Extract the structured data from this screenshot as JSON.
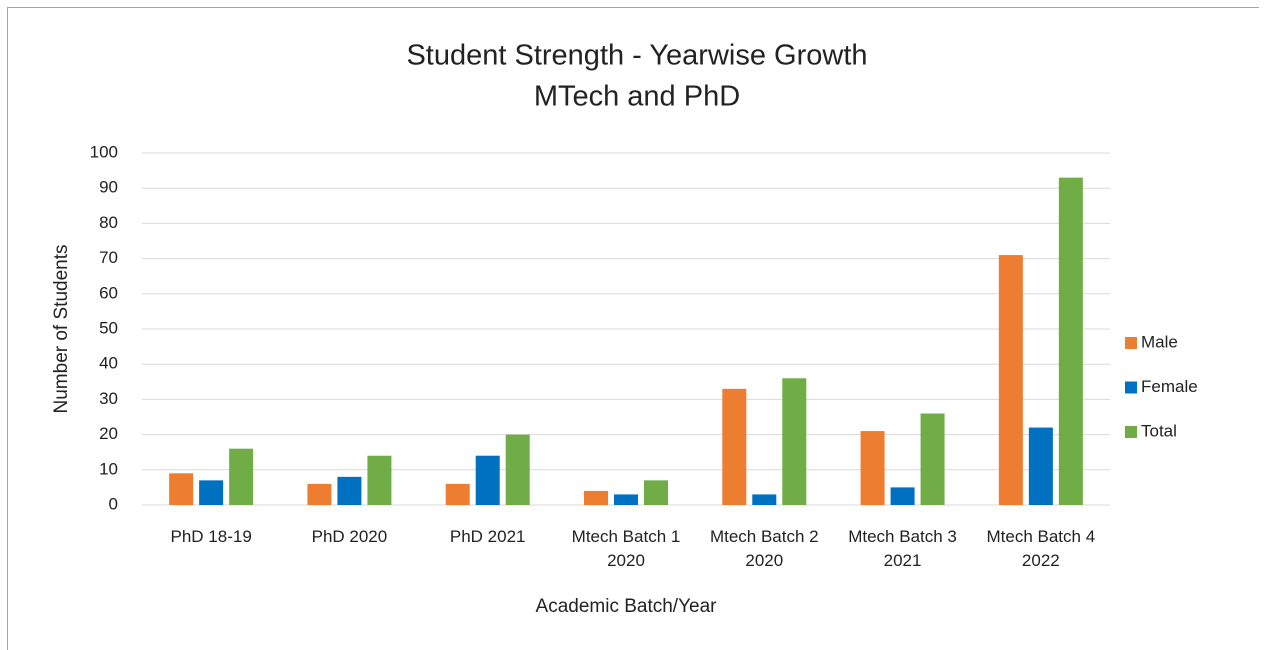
{
  "chart_data": {
    "type": "bar",
    "title": "Student Strength - Yearwise Growth",
    "subtitle": "MTech and PhD",
    "x_label": "Academic Batch/Year",
    "y_label": "Number of Students",
    "categories": [
      "PhD 18-19",
      "PhD 2020",
      "PhD 2021",
      "Mtech Batch 1 2020",
      "Mtech Batch 2 2020",
      "Mtech Batch 3 2021",
      "Mtech Batch 4 2022"
    ],
    "series": [
      {
        "name": "Male",
        "color": "#ed7d31",
        "values": [
          9,
          6,
          6,
          4,
          33,
          21,
          71
        ]
      },
      {
        "name": "Female",
        "color": "#0070c0",
        "values": [
          7,
          8,
          14,
          3,
          3,
          5,
          22
        ]
      },
      {
        "name": "Total",
        "color": "#70ad47",
        "values": [
          16,
          14,
          20,
          7,
          36,
          26,
          93
        ]
      }
    ],
    "ylim": [
      0,
      100
    ],
    "yticks": [
      0,
      10,
      20,
      30,
      40,
      50,
      60,
      70,
      80,
      90,
      100
    ],
    "grid": true,
    "legend": "right"
  }
}
